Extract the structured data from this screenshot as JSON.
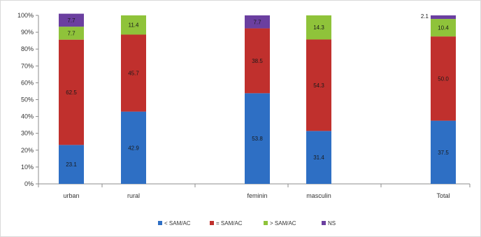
{
  "chart_data": {
    "type": "bar",
    "stacked": true,
    "categories": [
      "urban",
      "rural",
      "feminin",
      "masculin",
      "Total"
    ],
    "series": [
      {
        "name": "< SAM/AC",
        "color": "#2e6fc4",
        "values": [
          23.1,
          42.9,
          53.8,
          31.4,
          37.5
        ]
      },
      {
        "name": "= SAM/AC",
        "color": "#c0302d",
        "values": [
          62.5,
          45.7,
          38.5,
          54.3,
          50.0
        ]
      },
      {
        "name": "> SAM/AC",
        "color": "#8fc33a",
        "values": [
          7.7,
          11.4,
          0,
          14.3,
          10.4
        ]
      },
      {
        "name": "NS",
        "color": "#6b3fa0",
        "values": [
          7.7,
          0,
          7.7,
          0,
          2.1
        ]
      }
    ],
    "value_labels": [
      [
        "23.1",
        "62.5",
        "7.7",
        "7.7"
      ],
      [
        "42.9",
        "45.7",
        "11.4",
        ""
      ],
      [
        "53.8",
        "38.5",
        "",
        "7.7"
      ],
      [
        "31.4",
        "54.3",
        "14.3",
        ""
      ],
      [
        "37.5",
        "50.0",
        "10.4",
        "2.1"
      ]
    ],
    "y_ticks": [
      "0%",
      "10%",
      "20%",
      "30%",
      "40%",
      "50%",
      "60%",
      "70%",
      "80%",
      "90%",
      "100%"
    ],
    "ylim": [
      0,
      100
    ],
    "grid": false,
    "legend": "bottom",
    "title": "",
    "xlabel": "",
    "ylabel": ""
  }
}
